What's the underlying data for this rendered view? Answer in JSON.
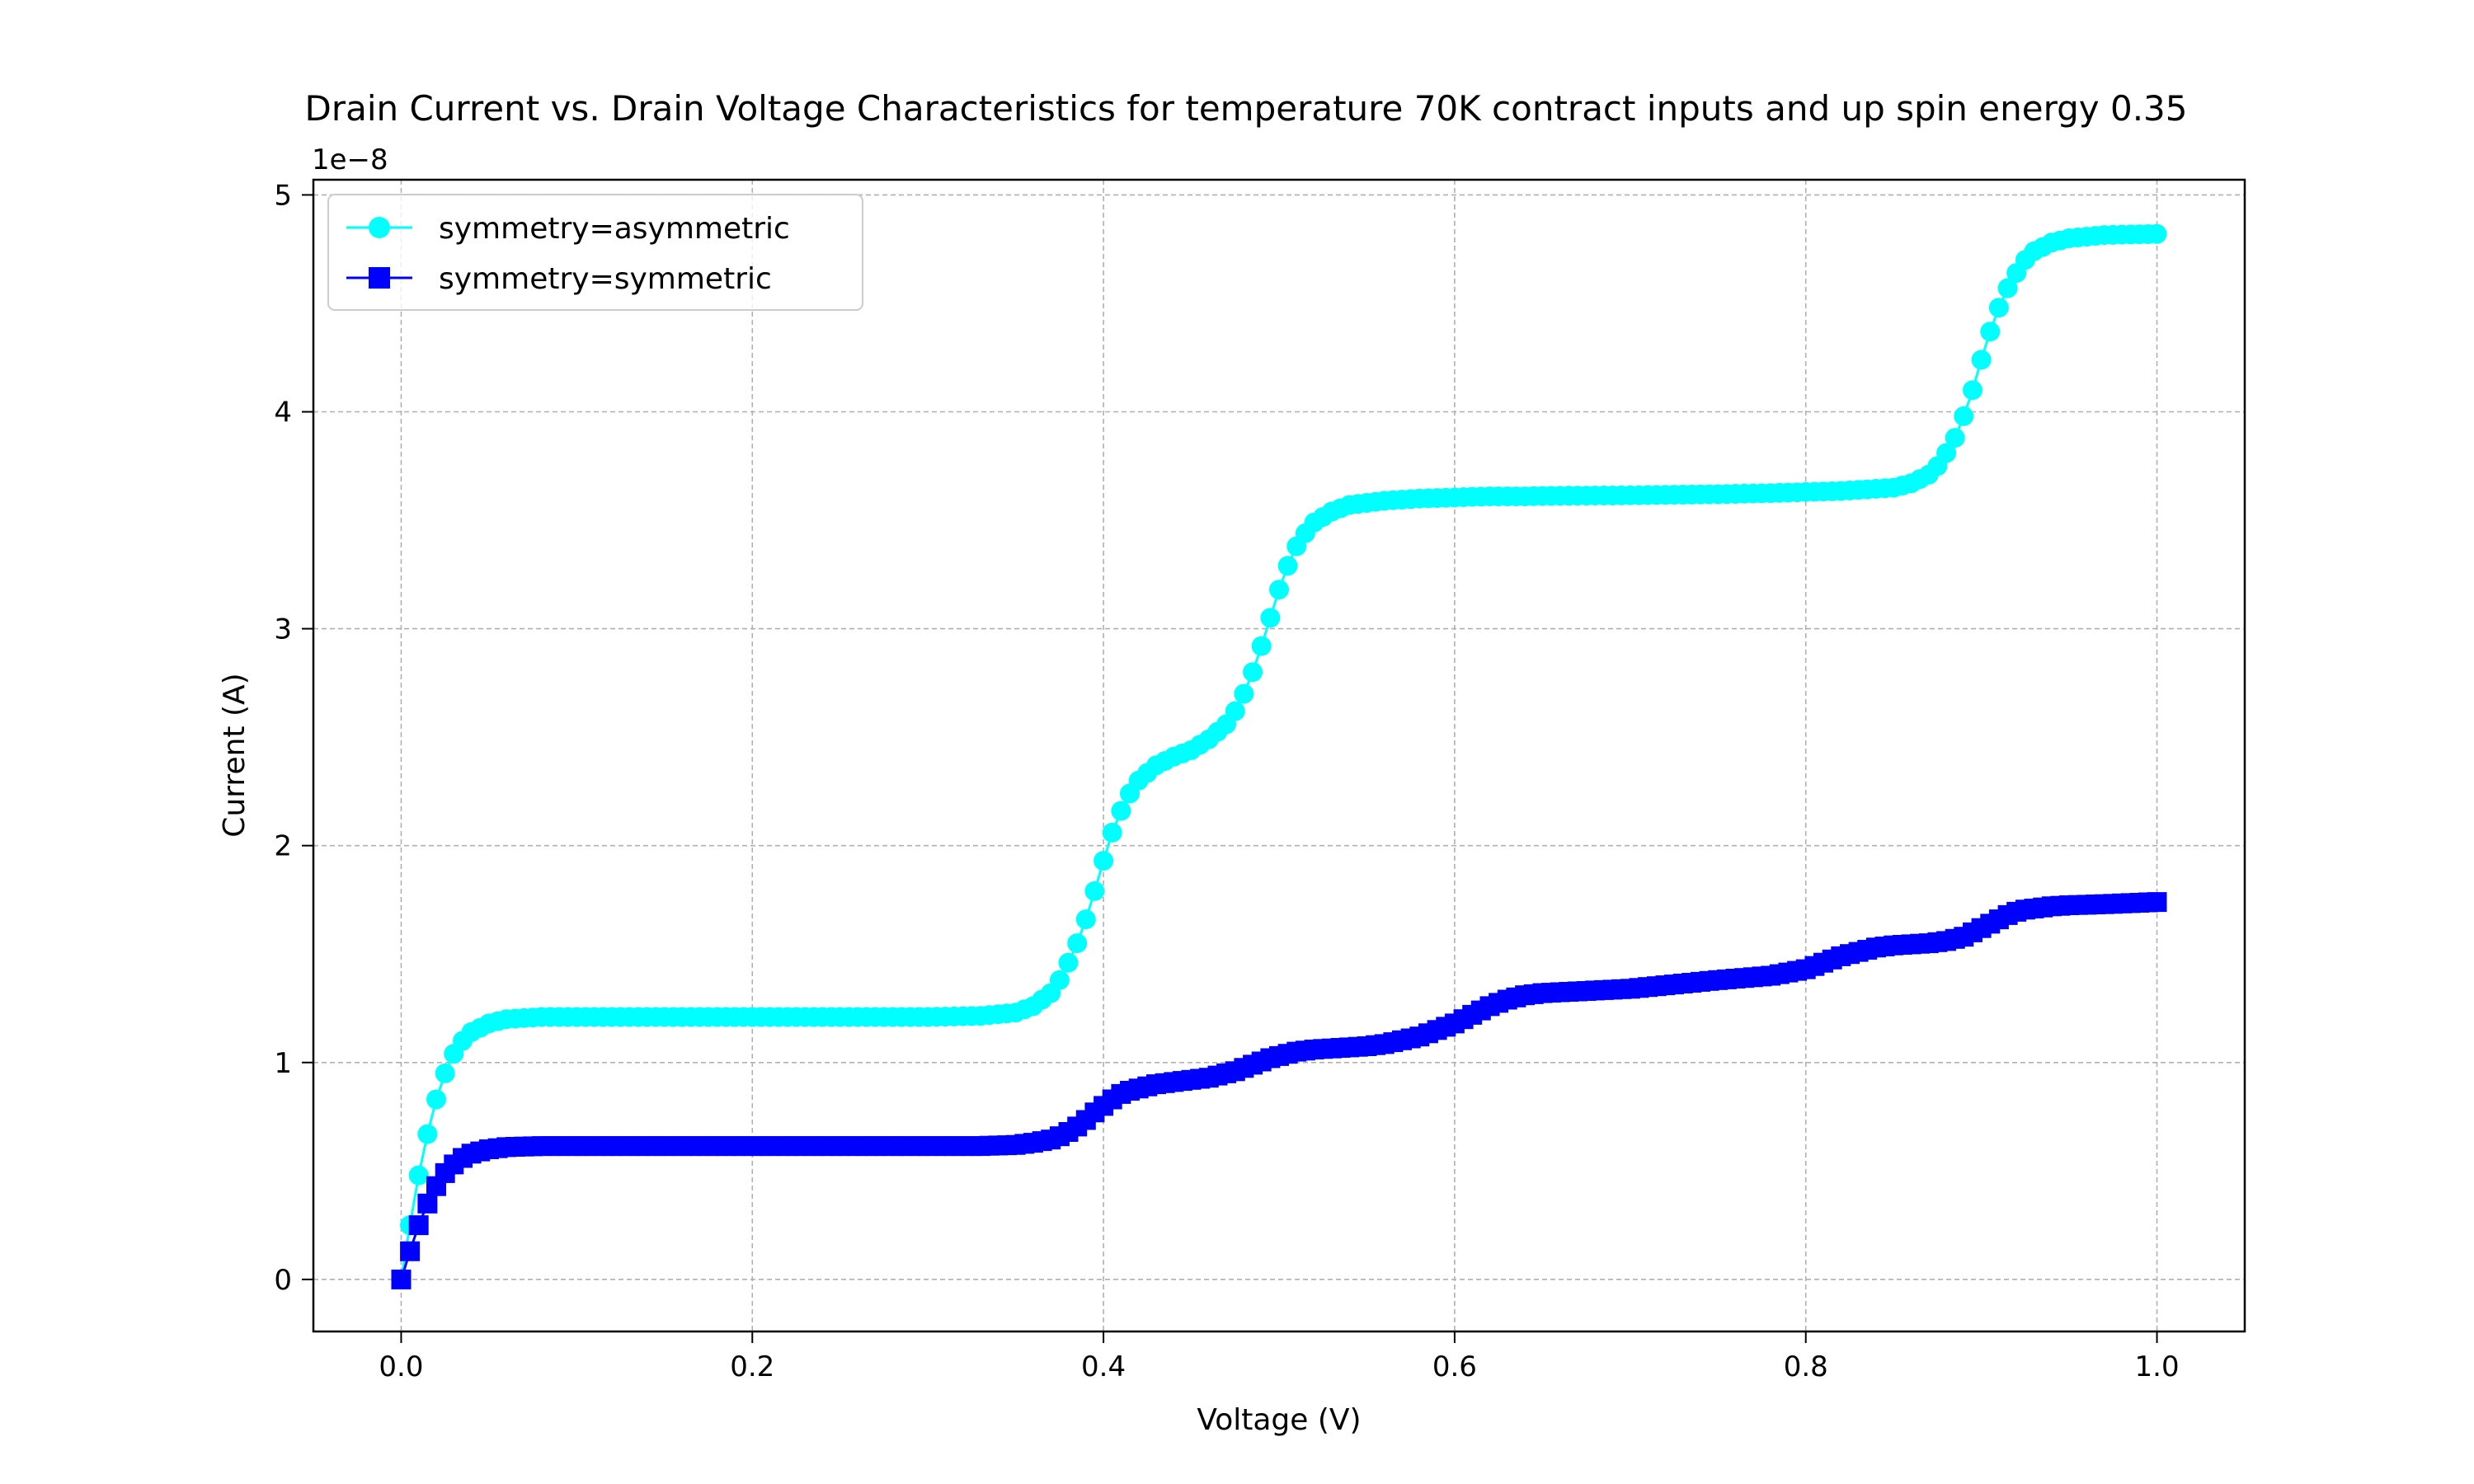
{
  "chart_data": {
    "type": "line",
    "title": "Drain Current vs. Drain Voltage Characteristics for temperature 70K contract inputs and up spin energy 0.35",
    "xlabel": "Voltage (V)",
    "ylabel": "Current (A)",
    "y_offset_label": "1e−8",
    "xlim": [
      -0.05,
      1.05
    ],
    "ylim": [
      -0.24,
      5.07
    ],
    "y_scale_factor": 1e-08,
    "x_ticks": [
      0.0,
      0.2,
      0.4,
      0.6,
      0.8,
      1.0
    ],
    "x_tick_labels": [
      "0.0",
      "0.2",
      "0.4",
      "0.6",
      "0.8",
      "1.0"
    ],
    "y_ticks": [
      0,
      1,
      2,
      3,
      4,
      5
    ],
    "y_tick_labels": [
      "0",
      "1",
      "2",
      "3",
      "4",
      "5"
    ],
    "grid": true,
    "legend_position": "upper left",
    "x": [
      0.0,
      0.005,
      0.01,
      0.015,
      0.02,
      0.025,
      0.03,
      0.035,
      0.04,
      0.05,
      0.06,
      0.08,
      0.1,
      0.15,
      0.2,
      0.25,
      0.3,
      0.33,
      0.35,
      0.36,
      0.37,
      0.375,
      0.38,
      0.385,
      0.39,
      0.395,
      0.4,
      0.405,
      0.41,
      0.415,
      0.42,
      0.43,
      0.44,
      0.45,
      0.46,
      0.47,
      0.475,
      0.48,
      0.485,
      0.49,
      0.495,
      0.5,
      0.505,
      0.51,
      0.515,
      0.52,
      0.53,
      0.54,
      0.55,
      0.56,
      0.58,
      0.6,
      0.61,
      0.62,
      0.63,
      0.64,
      0.65,
      0.7,
      0.75,
      0.78,
      0.8,
      0.82,
      0.84,
      0.85,
      0.86,
      0.87,
      0.875,
      0.88,
      0.885,
      0.89,
      0.895,
      0.9,
      0.905,
      0.91,
      0.915,
      0.92,
      0.925,
      0.93,
      0.94,
      0.95,
      0.97,
      1.0
    ],
    "series": [
      {
        "name": "symmetry=asymmetric",
        "color": "#00ffff",
        "marker": "circle",
        "values": [
          0.0,
          0.25,
          0.48,
          0.67,
          0.83,
          0.95,
          1.04,
          1.1,
          1.14,
          1.18,
          1.2,
          1.21,
          1.21,
          1.21,
          1.21,
          1.21,
          1.21,
          1.215,
          1.23,
          1.26,
          1.32,
          1.38,
          1.46,
          1.55,
          1.66,
          1.79,
          1.93,
          2.06,
          2.16,
          2.24,
          2.3,
          2.37,
          2.41,
          2.44,
          2.49,
          2.56,
          2.62,
          2.7,
          2.8,
          2.92,
          3.05,
          3.18,
          3.29,
          3.38,
          3.44,
          3.49,
          3.54,
          3.57,
          3.58,
          3.59,
          3.6,
          3.605,
          3.608,
          3.61,
          3.61,
          3.61,
          3.612,
          3.615,
          3.62,
          3.625,
          3.63,
          3.635,
          3.645,
          3.65,
          3.67,
          3.71,
          3.75,
          3.81,
          3.88,
          3.98,
          4.1,
          4.24,
          4.37,
          4.48,
          4.57,
          4.64,
          4.7,
          4.74,
          4.78,
          4.8,
          4.815,
          4.82
        ]
      },
      {
        "name": "symmetry=symmetric",
        "color": "#0000ff",
        "marker": "square",
        "values": [
          0.0,
          0.13,
          0.25,
          0.35,
          0.43,
          0.49,
          0.53,
          0.56,
          0.58,
          0.6,
          0.61,
          0.615,
          0.615,
          0.615,
          0.615,
          0.615,
          0.615,
          0.615,
          0.62,
          0.63,
          0.645,
          0.66,
          0.68,
          0.705,
          0.735,
          0.77,
          0.8,
          0.83,
          0.855,
          0.87,
          0.88,
          0.9,
          0.91,
          0.92,
          0.93,
          0.95,
          0.96,
          0.975,
          0.99,
          1.005,
          1.02,
          1.03,
          1.04,
          1.05,
          1.055,
          1.06,
          1.065,
          1.07,
          1.075,
          1.085,
          1.12,
          1.18,
          1.22,
          1.26,
          1.29,
          1.31,
          1.32,
          1.34,
          1.38,
          1.4,
          1.43,
          1.49,
          1.53,
          1.54,
          1.545,
          1.55,
          1.555,
          1.56,
          1.57,
          1.58,
          1.6,
          1.62,
          1.64,
          1.66,
          1.68,
          1.695,
          1.705,
          1.71,
          1.72,
          1.725,
          1.73,
          1.74
        ]
      }
    ]
  }
}
